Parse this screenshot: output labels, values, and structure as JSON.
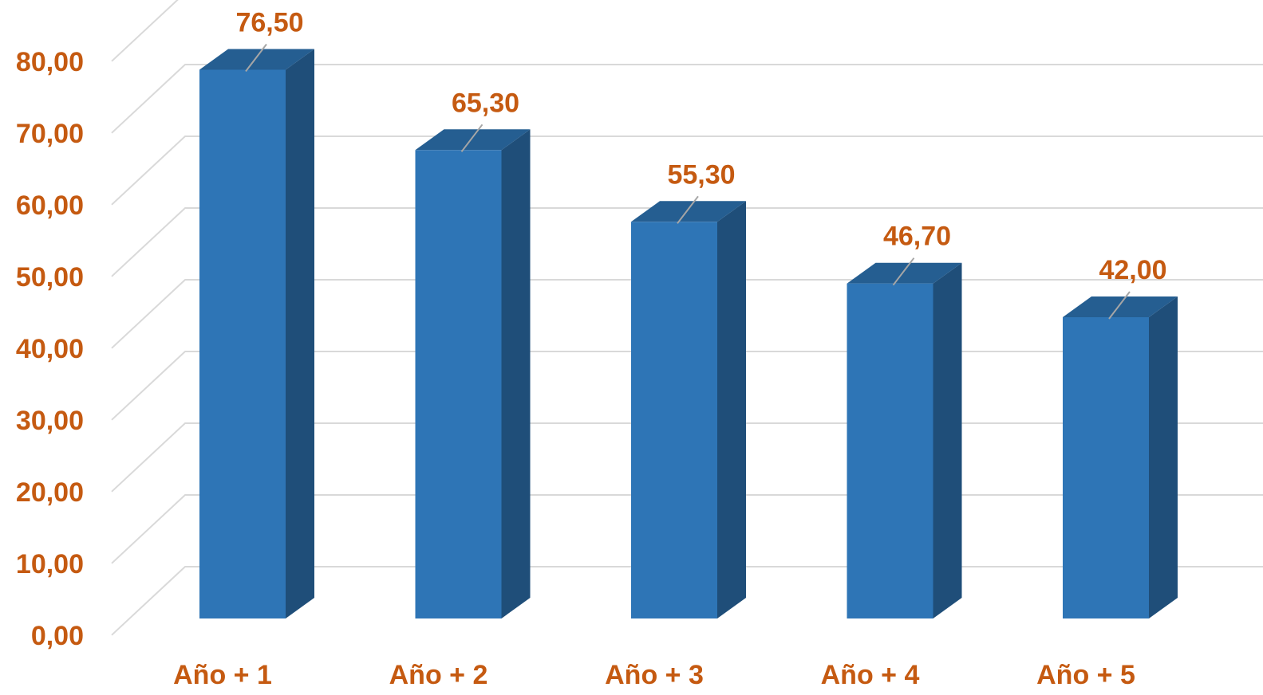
{
  "chart_data": {
    "type": "bar",
    "style": "3d-column",
    "categories": [
      "Año + 1",
      "Año + 2",
      "Año + 3",
      "Año + 4",
      "Año + 5"
    ],
    "values": [
      76.5,
      65.3,
      55.3,
      46.7,
      42.0
    ],
    "data_labels": [
      "76,50",
      "65,30",
      "55,30",
      "46,70",
      "42,00"
    ],
    "y_ticks": [
      "0,00",
      "10,00",
      "20,00",
      "30,00",
      "40,00",
      "50,00",
      "60,00",
      "70,00",
      "80,00"
    ],
    "ylim": [
      0,
      80
    ],
    "grid": true,
    "legend": "none",
    "title": "",
    "xlabel": "",
    "ylabel": "",
    "colors": {
      "bar_front": "#2e75b6",
      "bar_side": "#1f4e79",
      "bar_top": "#255e91",
      "label_text": "#c55a11",
      "gridline": "#d9d9d9"
    }
  }
}
